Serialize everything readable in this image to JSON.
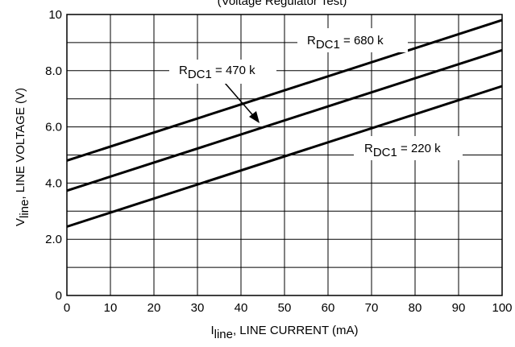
{
  "chart_data": {
    "type": "line",
    "title_partial": "(Voltage Regulator Test)",
    "xlabel": {
      "main": "I",
      "sub": "line",
      "rest": ", LINE CURRENT (mA)"
    },
    "ylabel": {
      "main": "V",
      "sub": "line",
      "rest": ", LINE VOLTAGE (V)"
    },
    "xlim": [
      0,
      100
    ],
    "ylim": [
      0,
      10
    ],
    "x_ticks": [
      "0",
      "10",
      "20",
      "30",
      "40",
      "50",
      "60",
      "70",
      "80",
      "90",
      "100"
    ],
    "y_ticks": [
      {
        "v": 0,
        "label": "0"
      },
      {
        "v": 2,
        "label": "2.0"
      },
      {
        "v": 4,
        "label": "4.0"
      },
      {
        "v": 6,
        "label": "6.0"
      },
      {
        "v": 8,
        "label": "8.0"
      },
      {
        "v": 10,
        "label": "10"
      }
    ],
    "x_grid": [
      0,
      10,
      20,
      30,
      40,
      50,
      60,
      70,
      80,
      90,
      100
    ],
    "y_grid": [
      0,
      1,
      2,
      3,
      4,
      5,
      6,
      7,
      8,
      9,
      10
    ],
    "series": [
      {
        "name": "RDC1 = 680 k",
        "x": [
          0,
          100
        ],
        "y": [
          4.8,
          9.8
        ]
      },
      {
        "name": "RDC1 = 470 k",
        "x": [
          0,
          100
        ],
        "y": [
          3.73,
          8.73
        ]
      },
      {
        "name": "RDC1 = 220 k",
        "x": [
          0,
          100
        ],
        "y": [
          2.45,
          7.45
        ]
      }
    ],
    "series_labels": [
      {
        "pre": "R",
        "sub": "DC1",
        "post": " = 680 k"
      },
      {
        "pre": "R",
        "sub": "DC1",
        "post": " = 470 k"
      },
      {
        "pre": "R",
        "sub": "DC1",
        "post": " = 220 k"
      }
    ],
    "grid": true,
    "legend": "inline labels"
  }
}
